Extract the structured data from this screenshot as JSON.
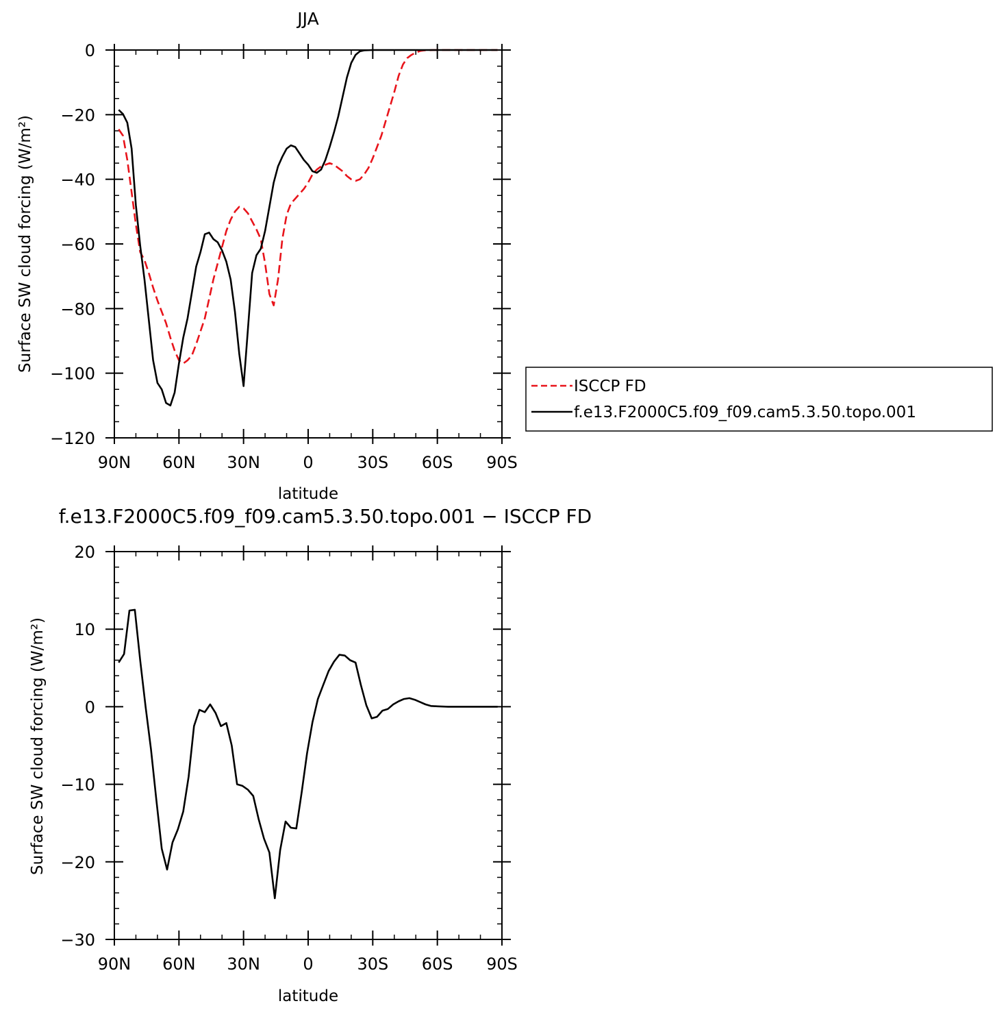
{
  "chart_data": [
    {
      "type": "line",
      "title": "JJA",
      "xlabel": "latitude",
      "ylabel": "Surface SW cloud forcing (W/m²)",
      "xlim": [
        90,
        -90
      ],
      "ylim": [
        -120,
        0
      ],
      "xticks": [
        {
          "value": 90,
          "label": "90N"
        },
        {
          "value": 60,
          "label": "60N"
        },
        {
          "value": 30,
          "label": "30N"
        },
        {
          "value": 0,
          "label": "0"
        },
        {
          "value": -30,
          "label": "30S"
        },
        {
          "value": -60,
          "label": "60S"
        },
        {
          "value": -90,
          "label": "90S"
        }
      ],
      "yticks": [
        {
          "value": 0,
          "label": "0"
        },
        {
          "value": -20,
          "label": "−20"
        },
        {
          "value": -40,
          "label": "−40"
        },
        {
          "value": -60,
          "label": "−60"
        },
        {
          "value": -80,
          "label": "−80"
        },
        {
          "value": -100,
          "label": "−100"
        },
        {
          "value": -120,
          "label": "−120"
        }
      ],
      "legend": "right",
      "series": [
        {
          "name": "ISCCP FD",
          "color": "#e8141b",
          "style": "dashed",
          "points": [
            [
              88,
              -24.5
            ],
            [
              86,
              -26.5
            ],
            [
              84,
              -34
            ],
            [
              82,
              -44
            ],
            [
              80,
              -54
            ],
            [
              78,
              -62.5
            ],
            [
              76,
              -65
            ],
            [
              74,
              -69
            ],
            [
              72,
              -73.5
            ],
            [
              70,
              -77.5
            ],
            [
              68,
              -81
            ],
            [
              66,
              -84.5
            ],
            [
              64,
              -89
            ],
            [
              62,
              -93
            ],
            [
              60,
              -96
            ],
            [
              58,
              -97
            ],
            [
              56,
              -96
            ],
            [
              54,
              -94.5
            ],
            [
              52,
              -91
            ],
            [
              50,
              -87
            ],
            [
              48,
              -83
            ],
            [
              46,
              -77
            ],
            [
              44,
              -71
            ],
            [
              42,
              -66
            ],
            [
              40,
              -61
            ],
            [
              38,
              -56
            ],
            [
              36,
              -52.5
            ],
            [
              34,
              -50
            ],
            [
              32,
              -48.5
            ],
            [
              30,
              -49
            ],
            [
              28,
              -50.5
            ],
            [
              26,
              -53
            ],
            [
              24,
              -55.5
            ],
            [
              22,
              -58.5
            ],
            [
              20,
              -66
            ],
            [
              18,
              -75.5
            ],
            [
              16,
              -79
            ],
            [
              14,
              -71
            ],
            [
              12,
              -58.5
            ],
            [
              10,
              -51
            ],
            [
              8,
              -47.5
            ],
            [
              6,
              -46
            ],
            [
              4,
              -44.5
            ],
            [
              2,
              -43
            ],
            [
              0,
              -41
            ],
            [
              -2,
              -38.5
            ],
            [
              -4,
              -37
            ],
            [
              -6,
              -36
            ],
            [
              -8,
              -35.5
            ],
            [
              -10,
              -35
            ],
            [
              -12,
              -35.5
            ],
            [
              -14,
              -36.5
            ],
            [
              -16,
              -37.5
            ],
            [
              -18,
              -39
            ],
            [
              -20,
              -40
            ],
            [
              -22,
              -40.5
            ],
            [
              -24,
              -40
            ],
            [
              -26,
              -38.5
            ],
            [
              -28,
              -36.5
            ],
            [
              -30,
              -33.5
            ],
            [
              -32,
              -30
            ],
            [
              -34,
              -26.5
            ],
            [
              -36,
              -22
            ],
            [
              -38,
              -17.5
            ],
            [
              -40,
              -13
            ],
            [
              -42,
              -8
            ],
            [
              -44,
              -4.5
            ],
            [
              -46,
              -2.5
            ],
            [
              -48,
              -1.5
            ],
            [
              -50,
              -0.8
            ],
            [
              -52,
              -0.3
            ],
            [
              -54,
              -0.1
            ],
            [
              -58,
              0
            ],
            [
              -88,
              0
            ]
          ]
        },
        {
          "name": "f.e13.F2000C5.f09_f09.cam5.3.50.topo.001",
          "color": "#000000",
          "style": "solid",
          "points": [
            [
              88,
              -18.5
            ],
            [
              86,
              -19.8
            ],
            [
              84,
              -22.5
            ],
            [
              82,
              -30.5
            ],
            [
              80,
              -48
            ],
            [
              78,
              -60.5
            ],
            [
              76,
              -71
            ],
            [
              74,
              -83.5
            ],
            [
              72,
              -96
            ],
            [
              70,
              -103
            ],
            [
              68,
              -105
            ],
            [
              66,
              -109.2
            ],
            [
              64,
              -110
            ],
            [
              62,
              -106
            ],
            [
              60,
              -97
            ],
            [
              58,
              -89
            ],
            [
              56,
              -83
            ],
            [
              54,
              -75
            ],
            [
              52,
              -67
            ],
            [
              50,
              -62.5
            ],
            [
              48,
              -57
            ],
            [
              46,
              -56.5
            ],
            [
              44,
              -58.5
            ],
            [
              42,
              -59.5
            ],
            [
              40,
              -62
            ],
            [
              38,
              -65.5
            ],
            [
              36,
              -71
            ],
            [
              34,
              -81
            ],
            [
              32,
              -94
            ],
            [
              30,
              -104
            ],
            [
              28,
              -86.5
            ],
            [
              26,
              -69
            ],
            [
              24,
              -63.5
            ],
            [
              22,
              -61.5
            ],
            [
              20,
              -56
            ],
            [
              18,
              -48.5
            ],
            [
              16,
              -41
            ],
            [
              14,
              -36
            ],
            [
              12,
              -33
            ],
            [
              10,
              -30.5
            ],
            [
              8,
              -29.5
            ],
            [
              6,
              -30
            ],
            [
              4,
              -32
            ],
            [
              2,
              -34
            ],
            [
              0,
              -35.5
            ],
            [
              -2,
              -37.5
            ],
            [
              -4,
              -38
            ],
            [
              -6,
              -37
            ],
            [
              -8,
              -34
            ],
            [
              -10,
              -30
            ],
            [
              -12,
              -25.5
            ],
            [
              -14,
              -20.5
            ],
            [
              -16,
              -14.5
            ],
            [
              -18,
              -8.5
            ],
            [
              -20,
              -4
            ],
            [
              -22,
              -1.5
            ],
            [
              -24,
              -0.4
            ],
            [
              -26,
              -0.1
            ],
            [
              -30,
              0
            ],
            [
              -88,
              0
            ]
          ]
        }
      ]
    },
    {
      "type": "line",
      "title": "f.e13.F2000C5.f09_f09.cam5.3.50.topo.001 − ISCCP FD",
      "xlabel": "latitude",
      "ylabel": "Surface SW cloud forcing (W/m²)",
      "xlim": [
        90,
        -90
      ],
      "ylim": [
        -30,
        20
      ],
      "xticks": [
        {
          "value": 90,
          "label": "90N"
        },
        {
          "value": 60,
          "label": "60N"
        },
        {
          "value": 30,
          "label": "30N"
        },
        {
          "value": 0,
          "label": "0"
        },
        {
          "value": -30,
          "label": "30S"
        },
        {
          "value": -60,
          "label": "60S"
        },
        {
          "value": -90,
          "label": "90S"
        }
      ],
      "yticks": [
        {
          "value": 20,
          "label": "20"
        },
        {
          "value": 10,
          "label": "10"
        },
        {
          "value": 0,
          "label": "0"
        },
        {
          "value": -10,
          "label": "−10"
        },
        {
          "value": -20,
          "label": "−20"
        },
        {
          "value": -30,
          "label": "−30"
        }
      ],
      "series": [
        {
          "color": "#000000",
          "style": "solid",
          "points": [
            [
              88,
              5.7
            ],
            [
              85.5,
              6.8
            ],
            [
              83,
              12.4
            ],
            [
              80.5,
              12.5
            ],
            [
              78,
              6
            ],
            [
              75.5,
              0
            ],
            [
              73,
              -5.5
            ],
            [
              70.5,
              -12
            ],
            [
              68,
              -18.3
            ],
            [
              65.5,
              -21
            ],
            [
              63,
              -17.5
            ],
            [
              60.5,
              -15.8
            ],
            [
              58,
              -13.5
            ],
            [
              55.5,
              -9
            ],
            [
              53,
              -2.5
            ],
            [
              50.5,
              -0.4
            ],
            [
              48,
              -0.7
            ],
            [
              45.5,
              0.3
            ],
            [
              43,
              -0.8
            ],
            [
              40.5,
              -2.5
            ],
            [
              38,
              -2.1
            ],
            [
              35.5,
              -5
            ],
            [
              33,
              -10
            ],
            [
              30.5,
              -10.2
            ],
            [
              28,
              -10.7
            ],
            [
              25.5,
              -11.5
            ],
            [
              23,
              -14.5
            ],
            [
              20.5,
              -17
            ],
            [
              18,
              -18.8
            ],
            [
              15.5,
              -24.7
            ],
            [
              13,
              -18.5
            ],
            [
              10.5,
              -14.8
            ],
            [
              8,
              -15.6
            ],
            [
              5.5,
              -15.7
            ],
            [
              3,
              -11
            ],
            [
              0.5,
              -6
            ],
            [
              -2,
              -2
            ],
            [
              -4.5,
              1
            ],
            [
              -7,
              2.8
            ],
            [
              -9.5,
              4.6
            ],
            [
              -12,
              5.8
            ],
            [
              -14.5,
              6.7
            ],
            [
              -17,
              6.6
            ],
            [
              -19.5,
              6
            ],
            [
              -22,
              5.7
            ],
            [
              -24.5,
              2.8
            ],
            [
              -27,
              0.2
            ],
            [
              -29.5,
              -1.5
            ],
            [
              -32,
              -1.3
            ],
            [
              -34.5,
              -0.5
            ],
            [
              -37,
              -0.3
            ],
            [
              -39.5,
              0.3
            ],
            [
              -42,
              0.7
            ],
            [
              -44.5,
              1
            ],
            [
              -47,
              1.1
            ],
            [
              -49.5,
              0.9
            ],
            [
              -52,
              0.6
            ],
            [
              -54.5,
              0.3
            ],
            [
              -57,
              0.1
            ],
            [
              -60,
              0.05
            ],
            [
              -65,
              0
            ],
            [
              -88,
              0
            ]
          ]
        }
      ]
    }
  ]
}
